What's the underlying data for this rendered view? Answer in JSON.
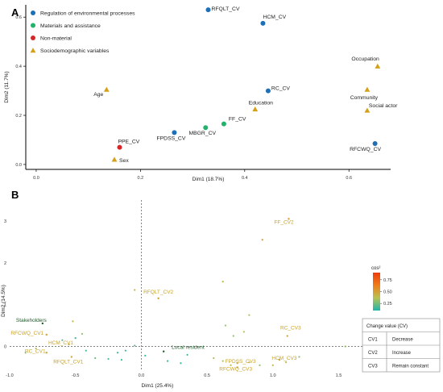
{
  "chart_data": [
    {
      "type": "scatter",
      "panel_label": "A",
      "xlabel": "Dim1 (18.7%)",
      "ylabel": "Dim2 (11.7%)",
      "xlim": [
        -0.02,
        0.68
      ],
      "ylim": [
        -0.02,
        0.65
      ],
      "x_ticks": [
        "0.0",
        "0.2",
        "0.4",
        "0.6"
      ],
      "x_tick_values": [
        0.0,
        0.2,
        0.4,
        0.6
      ],
      "y_ticks": [
        "0.0",
        "0.2",
        "0.4",
        "0.6"
      ],
      "y_tick_values": [
        0.0,
        0.2,
        0.4,
        0.6
      ],
      "legend": {
        "position": "top-left",
        "entries": [
          {
            "label": "Regulation of environmental processes",
            "color": "#1f6fb5",
            "marker": "circle"
          },
          {
            "label": "Materials and assistance",
            "color": "#22b26a",
            "marker": "circle"
          },
          {
            "label": "Non-material",
            "color": "#d62728",
            "marker": "circle"
          },
          {
            "label": "Sociodemographic variables",
            "color": "#d4a017",
            "marker": "triangle"
          }
        ]
      },
      "points": [
        {
          "label": "RFQLT_CV",
          "x": 0.33,
          "y": 0.63,
          "group": 0
        },
        {
          "label": "HCM_CV",
          "x": 0.435,
          "y": 0.575,
          "group": 0
        },
        {
          "label": "RC_CV",
          "x": 0.445,
          "y": 0.3,
          "group": 0
        },
        {
          "label": "FPDSS_CV",
          "x": 0.265,
          "y": 0.13,
          "group": 0
        },
        {
          "label": "RFCWQ_CV",
          "x": 0.65,
          "y": 0.085,
          "group": 0
        },
        {
          "label": "FF_CV",
          "x": 0.36,
          "y": 0.165,
          "group": 1
        },
        {
          "label": "MBGR_CV",
          "x": 0.325,
          "y": 0.15,
          "group": 1
        },
        {
          "label": "PPE_CV",
          "x": 0.16,
          "y": 0.07,
          "group": 2
        },
        {
          "label": "Occupation",
          "x": 0.655,
          "y": 0.4,
          "group": 3
        },
        {
          "label": "Age",
          "x": 0.135,
          "y": 0.305,
          "group": 3
        },
        {
          "label": "Community",
          "x": 0.635,
          "y": 0.305,
          "group": 3
        },
        {
          "label": "Education",
          "x": 0.42,
          "y": 0.225,
          "group": 3
        },
        {
          "label": "Social actor",
          "x": 0.635,
          "y": 0.22,
          "group": 3
        },
        {
          "label": "Sex",
          "x": 0.15,
          "y": 0.02,
          "group": 3
        }
      ]
    },
    {
      "type": "scatter",
      "panel_label": "B",
      "xlabel": "Dim1 (25.4%)",
      "ylabel": "Dim2 (14.5%)",
      "xlim": [
        -1.0,
        1.65
      ],
      "ylim": [
        -0.55,
        3.5
      ],
      "x_ticks": [
        "-1.0",
        "-0.5",
        "0.0",
        "0.5",
        "1.0",
        "1.5"
      ],
      "x_tick_values": [
        -1.0,
        -0.5,
        0.0,
        0.5,
        1.0,
        1.5
      ],
      "y_ticks": [
        "0",
        "1",
        "2",
        "3"
      ],
      "y_tick_values": [
        0,
        1,
        2,
        3
      ],
      "colorbar": {
        "title": "cos²",
        "ticks": [
          "0.75",
          "0.50",
          "0.25"
        ],
        "tick_values": [
          0.75,
          0.5,
          0.25
        ],
        "range": [
          0.1,
          0.9
        ],
        "colors": [
          "#1fb5ac",
          "#b8c254",
          "#ef7d1a",
          "#ee3b0c"
        ]
      },
      "labeled_points": [
        {
          "label": "FF_CV2",
          "x": 1.12,
          "y": 3.05,
          "cos2": 0.5
        },
        {
          "label": "RFQLT_CV2",
          "x": 0.13,
          "y": 1.15,
          "cos2": 0.5
        },
        {
          "label": "Stakeholders",
          "x": -0.75,
          "y": 0.55,
          "cos2": 0.1
        },
        {
          "label": "RFCWQ_CV1",
          "x": -0.72,
          "y": 0.28,
          "cos2": 0.5
        },
        {
          "label": "HCM_CV1",
          "x": -0.55,
          "y": 0.05,
          "cos2": 0.45
        },
        {
          "label": "RC_CV1",
          "x": -0.72,
          "y": -0.15,
          "cos2": 0.45
        },
        {
          "label": "RFQLT_CV1",
          "x": -0.53,
          "y": -0.25,
          "cos2": 0.45
        },
        {
          "label": "Local resident",
          "x": 0.17,
          "y": -0.12,
          "cos2": 0.1
        },
        {
          "label": "RC_CV3",
          "x": 1.11,
          "y": 0.25,
          "cos2": 0.45
        },
        {
          "label": "FPDSS_CV3",
          "x": 0.73,
          "y": -0.4,
          "cos2": 0.45
        },
        {
          "label": "HCM_CV3",
          "x": 1.05,
          "y": -0.32,
          "cos2": 0.45
        },
        {
          "label": "RFCWQ_CV3",
          "x": 0.73,
          "y": -0.5,
          "cos2": 0.45
        }
      ],
      "unlabeled_points": [
        {
          "x": 0.92,
          "y": 2.55,
          "cos2": 0.5
        },
        {
          "x": -0.05,
          "y": 1.35,
          "cos2": 0.45
        },
        {
          "x": 0.62,
          "y": 1.55,
          "cos2": 0.4
        },
        {
          "x": 0.82,
          "y": 0.75,
          "cos2": 0.35
        },
        {
          "x": -0.52,
          "y": 0.6,
          "cos2": 0.4
        },
        {
          "x": 0.64,
          "y": 0.5,
          "cos2": 0.3
        },
        {
          "x": 0.78,
          "y": 0.35,
          "cos2": 0.35
        },
        {
          "x": 0.7,
          "y": 0.25,
          "cos2": 0.3
        },
        {
          "x": -0.45,
          "y": 0.3,
          "cos2": 0.3
        },
        {
          "x": -0.88,
          "y": -0.15,
          "cos2": 0.3
        },
        {
          "x": -0.8,
          "y": -0.05,
          "cos2": 0.35
        },
        {
          "x": -0.6,
          "y": 0.15,
          "cos2": 0.2
        },
        {
          "x": -0.5,
          "y": 0.2,
          "cos2": 0.15
        },
        {
          "x": -0.42,
          "y": -0.1,
          "cos2": 0.15
        },
        {
          "x": -0.35,
          "y": -0.28,
          "cos2": 0.25
        },
        {
          "x": -0.25,
          "y": -0.3,
          "cos2": 0.2
        },
        {
          "x": -0.18,
          "y": -0.15,
          "cos2": 0.15
        },
        {
          "x": -0.15,
          "y": -0.32,
          "cos2": 0.15
        },
        {
          "x": -0.12,
          "y": -0.1,
          "cos2": 0.15
        },
        {
          "x": -0.05,
          "y": 0.02,
          "cos2": 0.2
        },
        {
          "x": 0.03,
          "y": -0.22,
          "cos2": 0.15
        },
        {
          "x": 0.2,
          "y": -0.35,
          "cos2": 0.15
        },
        {
          "x": 0.3,
          "y": -0.4,
          "cos2": 0.15
        },
        {
          "x": 0.35,
          "y": -0.2,
          "cos2": 0.15
        },
        {
          "x": 0.55,
          "y": -0.28,
          "cos2": 0.35
        },
        {
          "x": 0.62,
          "y": -0.35,
          "cos2": 0.35
        },
        {
          "x": 0.68,
          "y": -0.45,
          "cos2": 0.4
        },
        {
          "x": 0.82,
          "y": -0.38,
          "cos2": 0.35
        },
        {
          "x": 0.9,
          "y": -0.45,
          "cos2": 0.3
        },
        {
          "x": 1.0,
          "y": -0.45,
          "cos2": 0.4
        },
        {
          "x": 1.1,
          "y": -0.38,
          "cos2": 0.4
        },
        {
          "x": 1.2,
          "y": -0.25,
          "cos2": 0.3
        },
        {
          "x": 1.55,
          "y": 0.0,
          "cos2": 0.3
        }
      ],
      "legend_table": {
        "title": "Change value (CV)",
        "rows": [
          {
            "code": "CV1",
            "meaning": "Decrease"
          },
          {
            "code": "CV2",
            "meaning": "Increase"
          },
          {
            "code": "CV3",
            "meaning": "Remain constant"
          }
        ]
      }
    }
  ]
}
